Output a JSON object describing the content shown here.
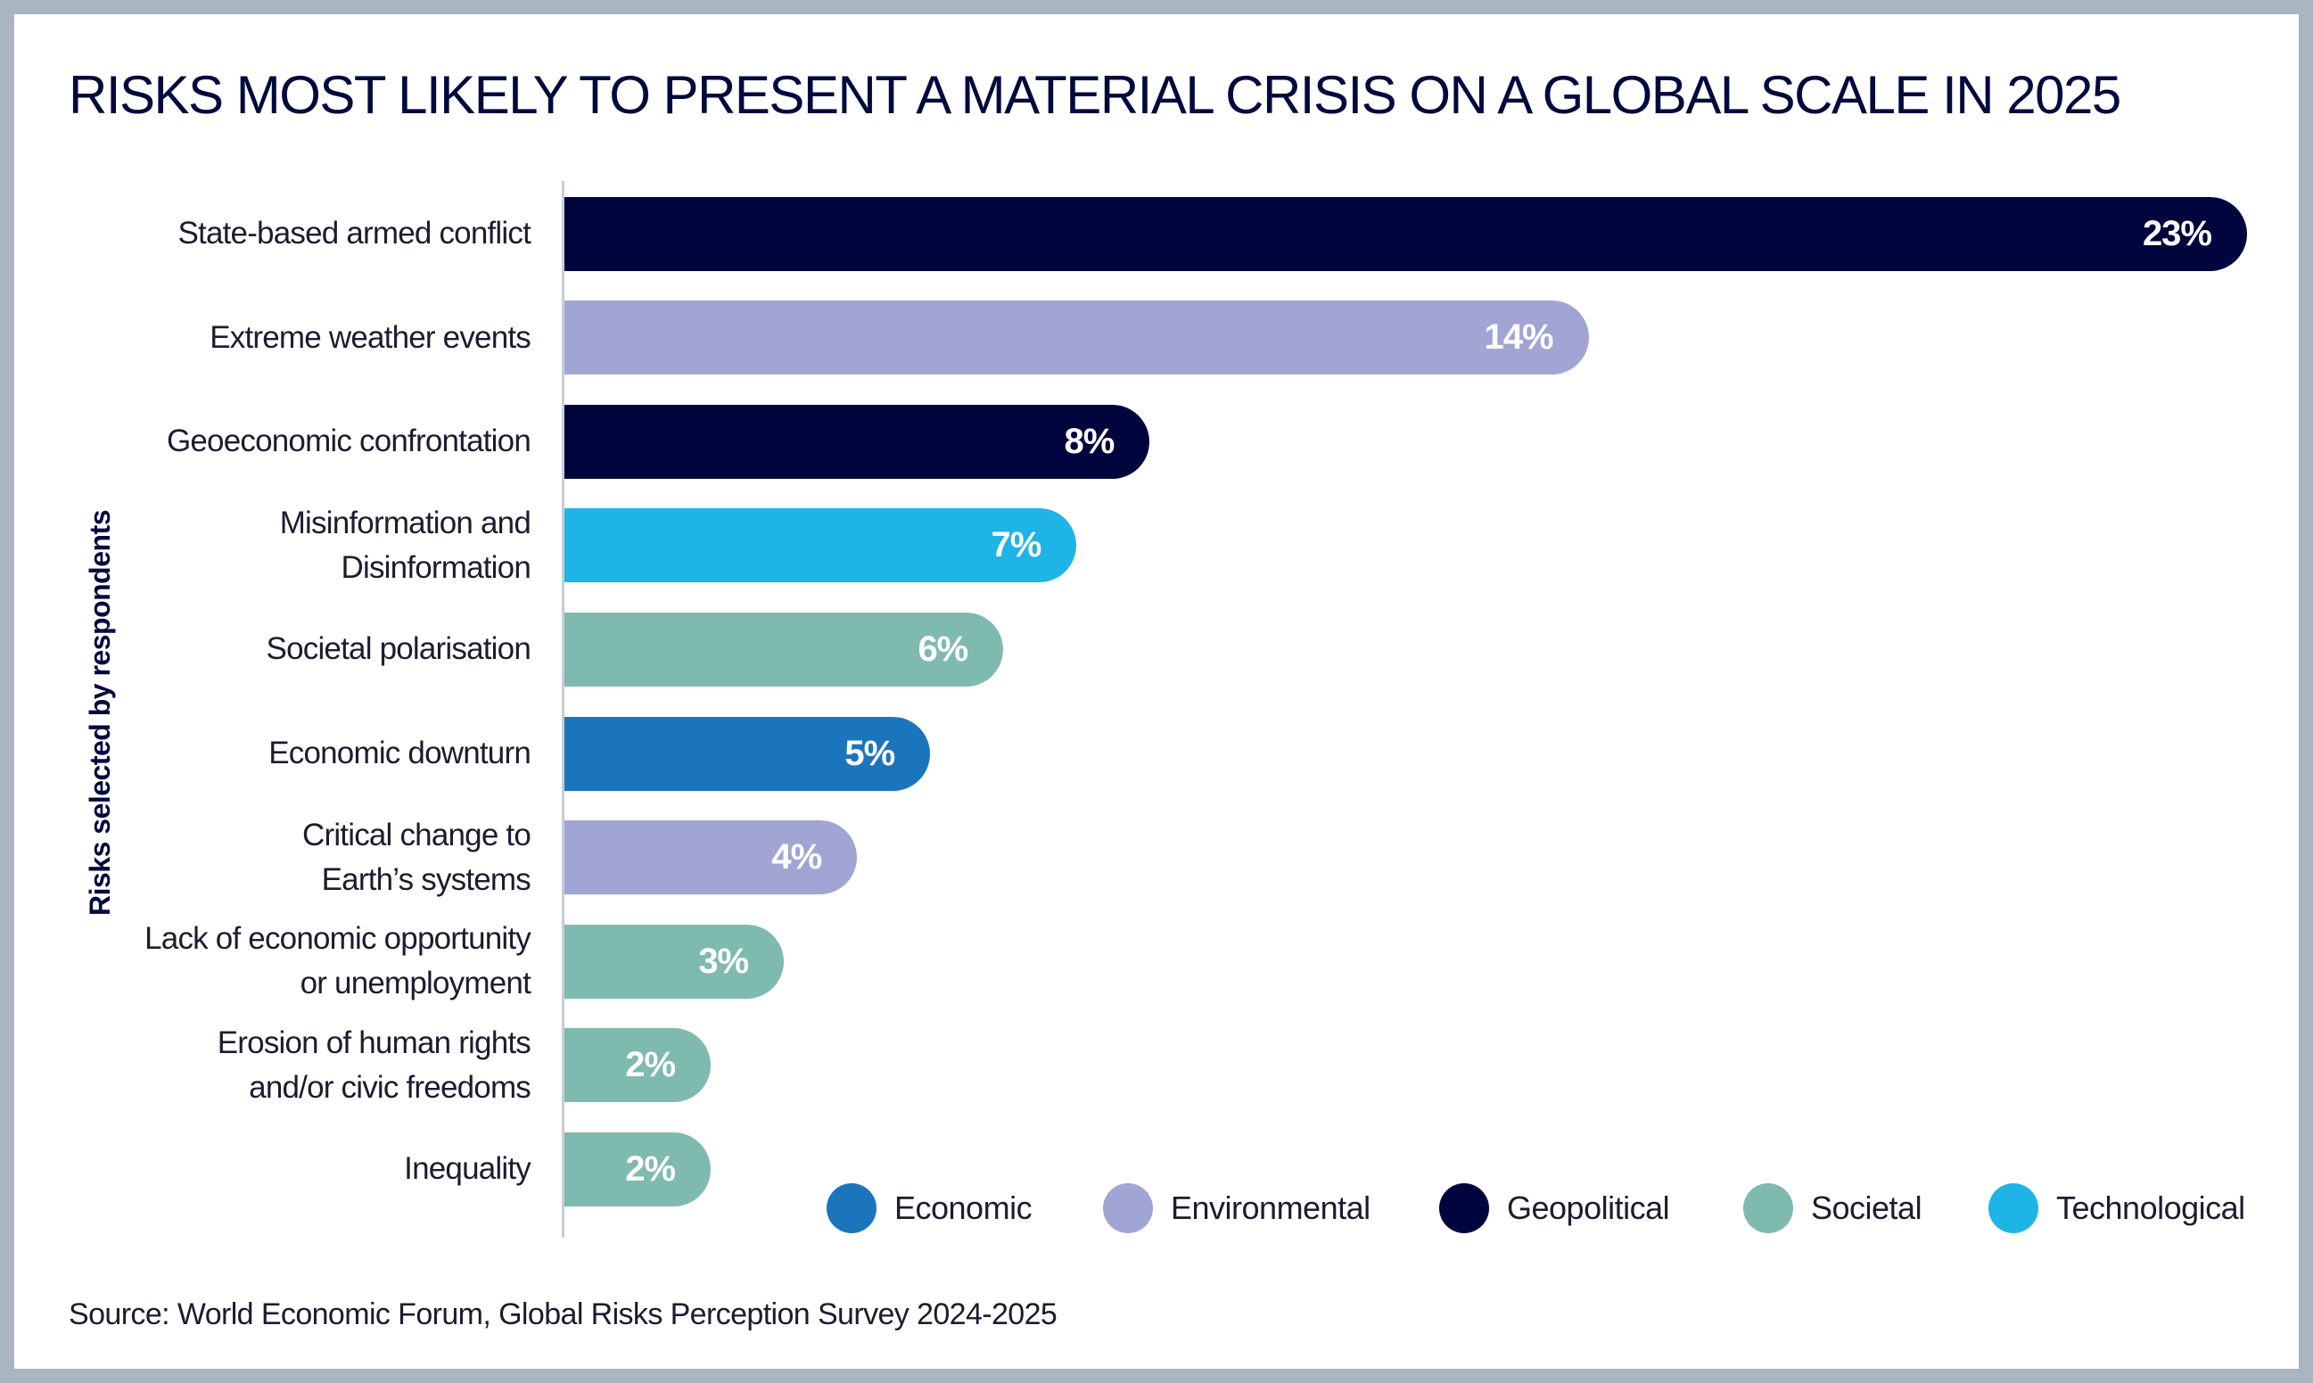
{
  "chart_data": {
    "type": "bar",
    "orientation": "horizontal",
    "title": "RISKS MOST LIKELY TO PRESENT A MATERIAL CRISIS ON A GLOBAL SCALE IN 2025",
    "ylabel": "Risks selected by respondents",
    "xlim": [
      0,
      23
    ],
    "categories": [
      "State-based armed conflict",
      "Extreme weather events",
      "Geoeconomic confrontation",
      "Misinformation and\nDisinformation",
      "Societal polarisation",
      "Economic downturn",
      "Critical change to\nEarth’s systems",
      "Lack of economic opportunity\nor unemployment",
      "Erosion of human rights\nand/or civic freedoms",
      "Inequality"
    ],
    "values": [
      23,
      14,
      8,
      7,
      6,
      5,
      4,
      3,
      2,
      2
    ],
    "value_labels": [
      "23%",
      "14%",
      "8%",
      "7%",
      "6%",
      "5%",
      "4%",
      "3%",
      "2%",
      "2%"
    ],
    "value_groups": [
      "Geopolitical",
      "Environmental",
      "Geopolitical",
      "Technological",
      "Societal",
      "Economic",
      "Environmental",
      "Societal",
      "Societal",
      "Societal"
    ],
    "legend": [
      {
        "name": "Economic",
        "color": "#1b75bc"
      },
      {
        "name": "Environmental",
        "color": "#a0a5d3"
      },
      {
        "name": "Geopolitical",
        "color": "#00053e"
      },
      {
        "name": "Societal",
        "color": "#7fbaae"
      },
      {
        "name": "Technological",
        "color": "#1eb4e6"
      }
    ],
    "legend_position": "bottom-right",
    "grid": false
  },
  "source": "Source: World Economic Forum, Global Risks Perception Survey 2024-2025"
}
